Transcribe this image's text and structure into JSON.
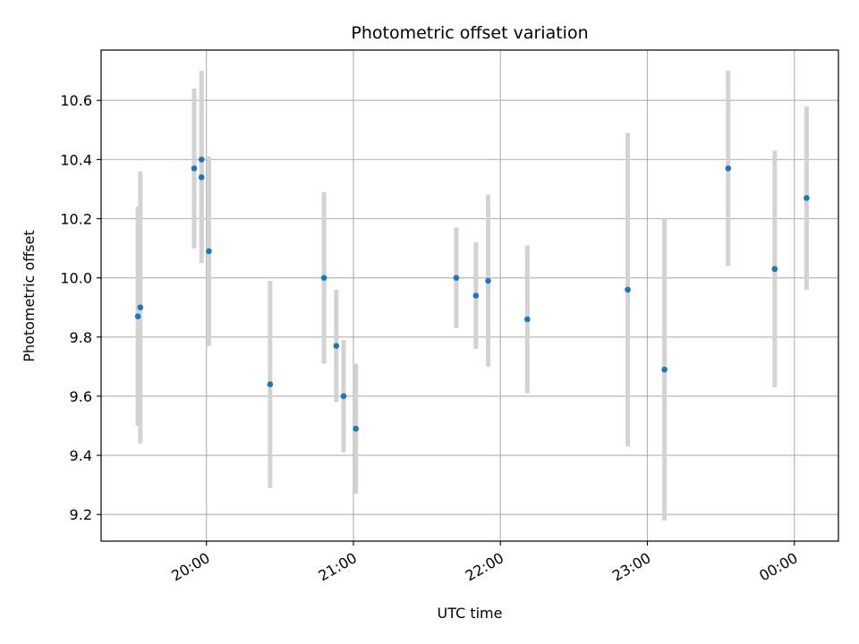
{
  "chart_data": {
    "type": "scatter",
    "title": "Photometric offset variation",
    "xlabel": "UTC time",
    "ylabel": "Photometric offset",
    "x_axis_type": "time",
    "xlim": [
      "19:17",
      "00:18"
    ],
    "ylim": [
      9.11,
      10.77
    ],
    "x_ticks": [
      {
        "time": "20:00",
        "label": "20:00"
      },
      {
        "time": "21:00",
        "label": "21:00"
      },
      {
        "time": "22:00",
        "label": "22:00"
      },
      {
        "time": "23:00",
        "label": "23:00"
      },
      {
        "time": "00:00",
        "label": "00:00"
      }
    ],
    "y_ticks": [
      9.2,
      9.4,
      9.6,
      9.8,
      10.0,
      10.2,
      10.4,
      10.6
    ],
    "y_tick_labels": [
      "9.2",
      "9.4",
      "9.6",
      "9.8",
      "10.0",
      "10.2",
      "10.4",
      "10.6"
    ],
    "grid": true,
    "marker_color": "#1f77b4",
    "errorbar_color": "#d3d3d3",
    "points": [
      {
        "time": "19:32",
        "y": 9.87,
        "yerr": 0.37
      },
      {
        "time": "19:33",
        "y": 9.9,
        "yerr": 0.46
      },
      {
        "time": "19:55",
        "y": 10.37,
        "yerr": 0.27
      },
      {
        "time": "19:58",
        "y": 10.4,
        "yerr": 0.3
      },
      {
        "time": "19:58",
        "y": 10.34,
        "yerr": 0.29
      },
      {
        "time": "20:01",
        "y": 10.09,
        "yerr": 0.32
      },
      {
        "time": "20:26",
        "y": 9.64,
        "yerr": 0.35
      },
      {
        "time": "20:48",
        "y": 10.0,
        "yerr": 0.29
      },
      {
        "time": "20:53",
        "y": 9.77,
        "yerr": 0.19
      },
      {
        "time": "20:56",
        "y": 9.6,
        "yerr": 0.19
      },
      {
        "time": "21:01",
        "y": 9.49,
        "yerr": 0.22
      },
      {
        "time": "21:42",
        "y": 10.0,
        "yerr": 0.17
      },
      {
        "time": "21:50",
        "y": 9.94,
        "yerr": 0.18
      },
      {
        "time": "21:55",
        "y": 9.99,
        "yerr": 0.29
      },
      {
        "time": "22:11",
        "y": 9.86,
        "yerr": 0.25
      },
      {
        "time": "22:52",
        "y": 9.96,
        "yerr": 0.53
      },
      {
        "time": "23:07",
        "y": 9.69,
        "yerr": 0.51
      },
      {
        "time": "23:33",
        "y": 10.37,
        "yerr": 0.33
      },
      {
        "time": "23:52",
        "y": 10.03,
        "yerr": 0.4
      },
      {
        "time": "00:05",
        "y": 10.27,
        "yerr": 0.31
      }
    ]
  }
}
